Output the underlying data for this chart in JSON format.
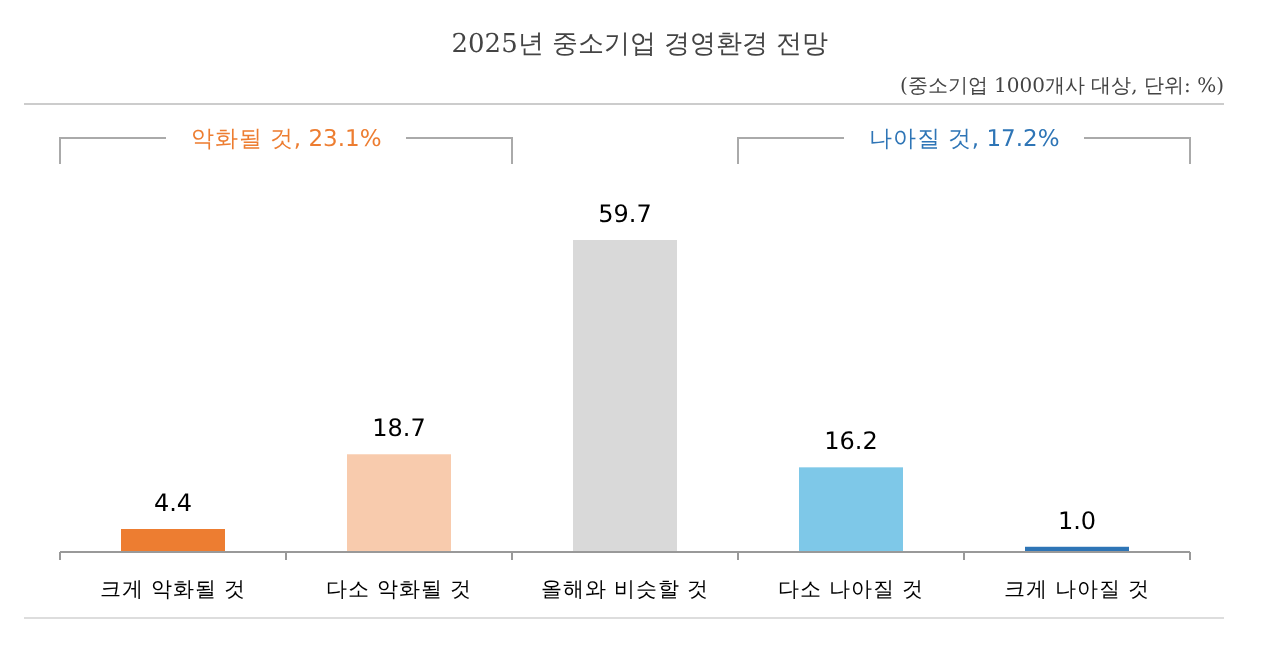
{
  "chart_data": {
    "type": "bar",
    "title": "2025년 중소기업 경영환경 전망",
    "subtitle": "(중소기업 1000개사 대상, 단위: %)",
    "categories": [
      "크게 악화될 것",
      "다소 악화될 것",
      "올해와 비슷할 것",
      "다소 나아질 것",
      "크게 나아질 것"
    ],
    "values": [
      4.4,
      18.7,
      59.7,
      16.2,
      1.0
    ],
    "colors": [
      "#ed7d31",
      "#f8cbad",
      "#d9d9d9",
      "#7ec8e8",
      "#2e75b6"
    ],
    "value_labels": [
      "4.4",
      "18.7",
      "59.7",
      "16.2",
      "1.0"
    ],
    "annotations": [
      "악화될 것, 23.1%",
      "나아질 것, 17.2%"
    ]
  }
}
